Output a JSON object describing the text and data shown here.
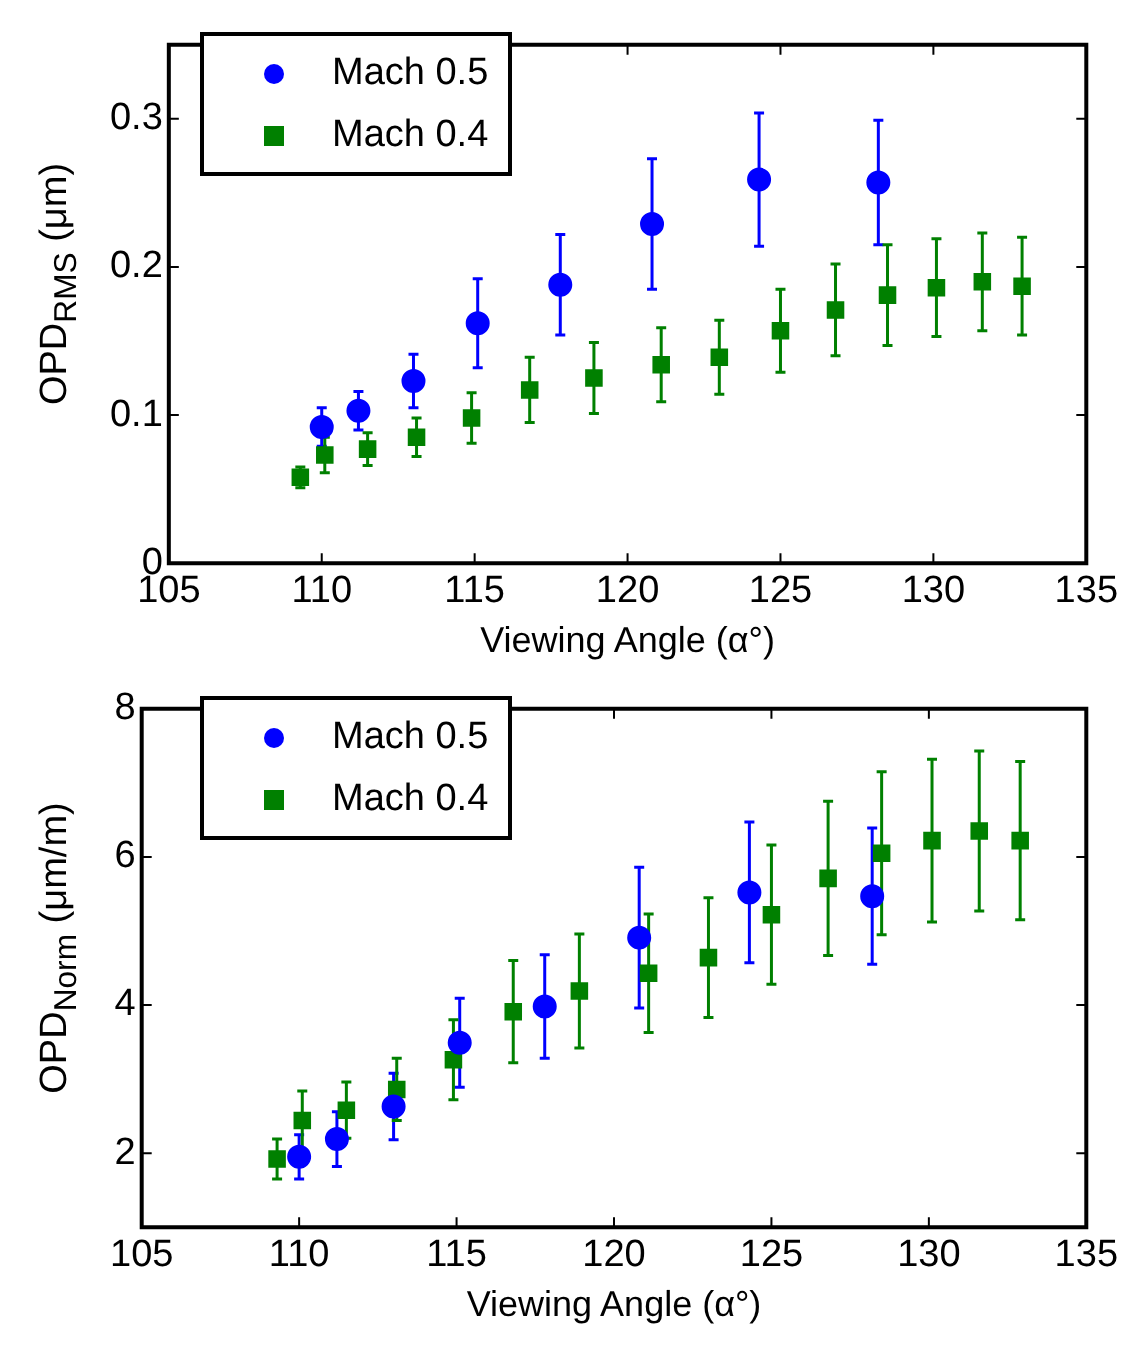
{
  "chart_data": [
    {
      "type": "scatter",
      "xlabel": "Viewing Angle (α°)",
      "ylabel": "OPD$_{RMS}$ (μm)",
      "xlim": [
        105,
        135
      ],
      "xticks": [
        105,
        110,
        115,
        120,
        125,
        130,
        135
      ],
      "ylim": [
        0,
        0.35
      ],
      "yticks": [
        0,
        0.1,
        0.2,
        0.3
      ],
      "grid": false,
      "legend": "top left",
      "series": [
        {
          "name": "Mach 0.5",
          "color": "#0000ff",
          "marker": "circle",
          "x": [
            110.0,
            111.2,
            113.0,
            115.1,
            117.8,
            120.8,
            124.3,
            128.2
          ],
          "values": [
            0.092,
            0.103,
            0.123,
            0.162,
            0.188,
            0.229,
            0.259,
            0.257
          ],
          "errors": [
            0.013,
            0.013,
            0.018,
            0.03,
            0.034,
            0.044,
            0.045,
            0.042
          ]
        },
        {
          "name": "Mach 0.4",
          "color": "#008000",
          "marker": "square",
          "x": [
            109.3,
            110.1,
            111.5,
            113.1,
            114.9,
            116.8,
            118.9,
            121.1,
            123.0,
            125.0,
            126.8,
            128.5,
            130.1,
            131.6,
            132.9
          ],
          "values": [
            0.058,
            0.073,
            0.077,
            0.085,
            0.098,
            0.117,
            0.125,
            0.134,
            0.139,
            0.157,
            0.171,
            0.181,
            0.186,
            0.19,
            0.187
          ],
          "errors": [
            0.007,
            0.012,
            0.011,
            0.013,
            0.017,
            0.022,
            0.024,
            0.025,
            0.025,
            0.028,
            0.031,
            0.034,
            0.033,
            0.033,
            0.033
          ]
        }
      ]
    },
    {
      "type": "scatter",
      "xlabel": "Viewing Angle (α°)",
      "ylabel": "OPD$_{Norm}$ (μm/m)",
      "xlim": [
        105,
        135
      ],
      "xticks": [
        105,
        110,
        115,
        120,
        125,
        130,
        135
      ],
      "ylim": [
        1,
        8
      ],
      "yticks": [
        2,
        4,
        6,
        8
      ],
      "grid": false,
      "legend": "top left",
      "series": [
        {
          "name": "Mach 0.5",
          "color": "#0000ff",
          "marker": "circle",
          "x": [
            110.0,
            111.2,
            113.0,
            115.1,
            117.8,
            120.8,
            124.3,
            128.2
          ],
          "values": [
            1.95,
            2.19,
            2.63,
            3.49,
            3.98,
            4.91,
            5.52,
            5.47
          ],
          "errors": [
            0.3,
            0.37,
            0.45,
            0.6,
            0.7,
            0.95,
            0.95,
            0.92
          ]
        },
        {
          "name": "Mach 0.4",
          "color": "#008000",
          "marker": "square",
          "x": [
            109.3,
            110.1,
            111.5,
            113.1,
            114.9,
            116.8,
            118.9,
            121.1,
            123.0,
            125.0,
            126.8,
            128.5,
            130.1,
            131.6,
            132.9
          ],
          "values": [
            1.92,
            2.44,
            2.58,
            2.86,
            3.26,
            3.91,
            4.19,
            4.43,
            4.64,
            5.22,
            5.71,
            6.05,
            6.22,
            6.35,
            6.22
          ],
          "errors": [
            0.27,
            0.4,
            0.38,
            0.42,
            0.54,
            0.69,
            0.77,
            0.8,
            0.81,
            0.94,
            1.04,
            1.1,
            1.1,
            1.08,
            1.07
          ]
        }
      ]
    }
  ]
}
